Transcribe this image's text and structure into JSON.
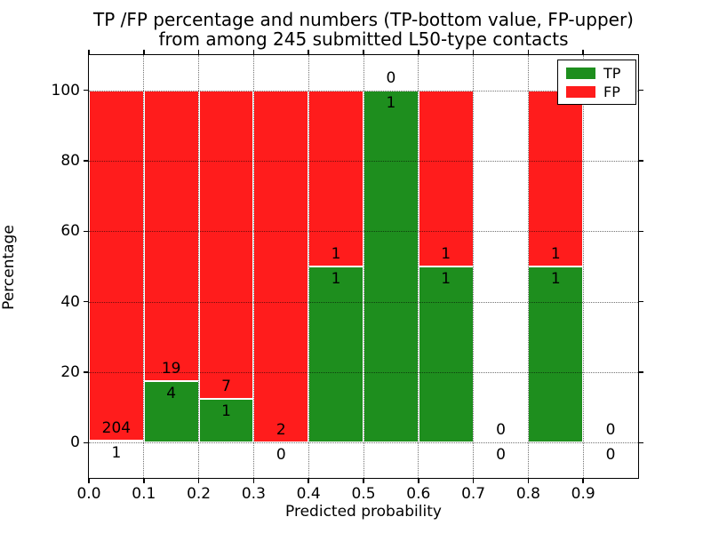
{
  "chart_data": {
    "type": "bar",
    "stacked": true,
    "title_line1": "TP /FP percentage and numbers (TP-bottom value, FP-upper)",
    "title_line2": "from among 245 submitted L50-type contacts",
    "xlabel": "Predicted probability",
    "ylabel": "Percentage",
    "xlim": [
      0.0,
      1.0
    ],
    "ylim": [
      -10,
      110
    ],
    "xticks": [
      0.0,
      0.1,
      0.2,
      0.3,
      0.4,
      0.5,
      0.6,
      0.7,
      0.8,
      0.9
    ],
    "xtick_labels": [
      "0.0",
      "0.1",
      "0.2",
      "0.3",
      "0.4",
      "0.5",
      "0.6",
      "0.7",
      "0.8",
      "0.9"
    ],
    "yticks": [
      0,
      20,
      40,
      60,
      80,
      100
    ],
    "ytick_labels": [
      "0",
      "20",
      "40",
      "60",
      "80",
      "100"
    ],
    "grid": true,
    "legend_position": "upper right",
    "colors": {
      "tp": "#1e8e1e",
      "fp": "#ff1c1c",
      "edge": "#ffffff"
    },
    "legend": [
      {
        "label": "TP",
        "color": "#1e8e1e"
      },
      {
        "label": "FP",
        "color": "#ff1c1c"
      }
    ],
    "note": "Stacked percentage bars; label above segment boundary = FP count, label below boundary = TP count",
    "bins": [
      {
        "range": [
          0.0,
          0.1
        ],
        "tp": 1,
        "fp": 204
      },
      {
        "range": [
          0.1,
          0.2
        ],
        "tp": 4,
        "fp": 19
      },
      {
        "range": [
          0.2,
          0.3
        ],
        "tp": 1,
        "fp": 7
      },
      {
        "range": [
          0.3,
          0.4
        ],
        "tp": 0,
        "fp": 2
      },
      {
        "range": [
          0.4,
          0.5
        ],
        "tp": 1,
        "fp": 1
      },
      {
        "range": [
          0.5,
          0.6
        ],
        "tp": 1,
        "fp": 0
      },
      {
        "range": [
          0.6,
          0.7
        ],
        "tp": 1,
        "fp": 1
      },
      {
        "range": [
          0.7,
          0.8
        ],
        "tp": 0,
        "fp": 0
      },
      {
        "range": [
          0.8,
          0.9
        ],
        "tp": 1,
        "fp": 1
      },
      {
        "range": [
          0.9,
          1.0
        ],
        "tp": 0,
        "fp": 0
      }
    ]
  }
}
